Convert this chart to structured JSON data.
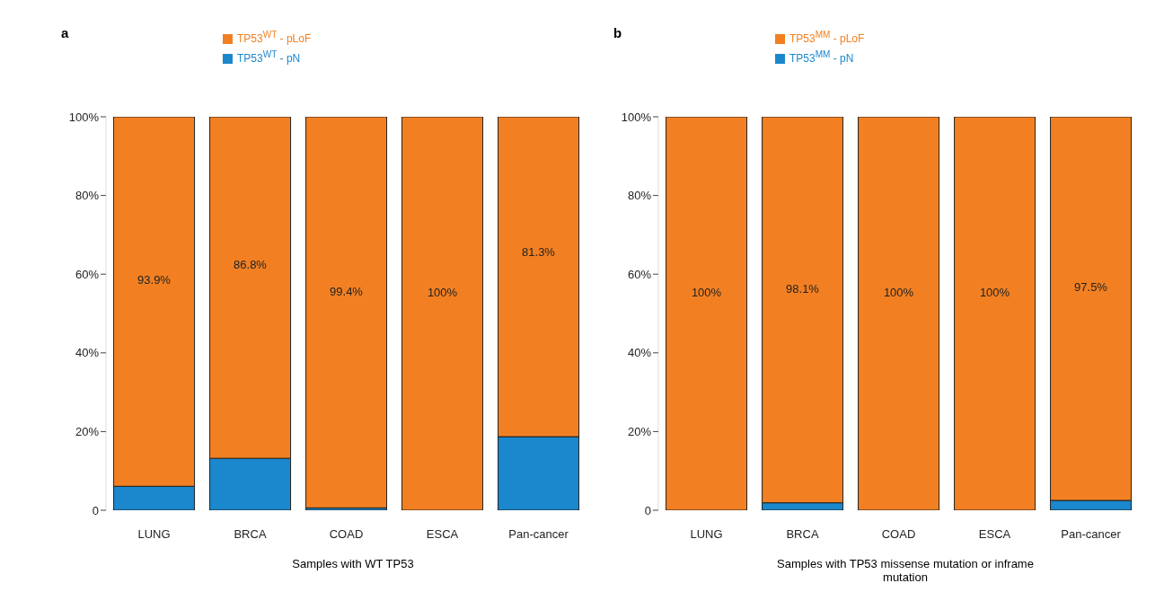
{
  "chart_data": [
    {
      "type": "bar",
      "title": "a",
      "xlabel": "Samples with WT TP53",
      "stacked": true,
      "legend": "top",
      "grid": false,
      "categories": [
        "LUNG",
        "BRCA",
        "COAD",
        "ESCA",
        "Pan-cancer"
      ],
      "series": [
        {
          "name": "TP53$^{WT}$ - pN",
          "color": "#1b87cc",
          "values": [
            6.1,
            13.2,
            0.6,
            0,
            18.7
          ]
        },
        {
          "name": "TP53$^{WT}$ - pLoF",
          "color": "#f28022",
          "values": [
            93.9,
            86.8,
            99.4,
            100,
            81.3
          ],
          "value_labels": [
            "93.9%",
            "86.8%",
            "99.4%",
            "100%",
            "81.3%"
          ]
        }
      ],
      "ylim": [
        0,
        100
      ],
      "yticks": [
        {
          "value": 0,
          "label": "0"
        },
        {
          "value": 20,
          "label": "20%"
        },
        {
          "value": 40,
          "label": "40%"
        },
        {
          "value": 60,
          "label": "60%"
        },
        {
          "value": 80,
          "label": "80%"
        },
        {
          "value": 100,
          "label": "100%"
        }
      ]
    },
    {
      "type": "bar",
      "title": "b",
      "xlabel": "Samples with TP53 missense mutation or inframe mutation",
      "stacked": true,
      "legend": "top",
      "grid": false,
      "categories": [
        "LUNG",
        "BRCA",
        "COAD",
        "ESCA",
        "Pan-cancer"
      ],
      "series": [
        {
          "name": "TP53$^{MM}$ - pN",
          "color": "#1b87cc",
          "values": [
            0,
            1.9,
            0,
            0,
            2.5
          ]
        },
        {
          "name": "TP53$^{MM}$ - pLoF",
          "color": "#f28022",
          "values": [
            100,
            98.1,
            100,
            100,
            97.5
          ],
          "value_labels": [
            "100%",
            "98.1%",
            "100%",
            "100%",
            "97.5%"
          ]
        }
      ],
      "ylim": [
        0,
        100
      ],
      "yticks": [
        {
          "value": 0,
          "label": "0"
        },
        {
          "value": 20,
          "label": "20%"
        },
        {
          "value": 40,
          "label": "40%"
        },
        {
          "value": 60,
          "label": "60%"
        },
        {
          "value": 80,
          "label": "80%"
        },
        {
          "value": 100,
          "label": "100%"
        }
      ]
    }
  ]
}
